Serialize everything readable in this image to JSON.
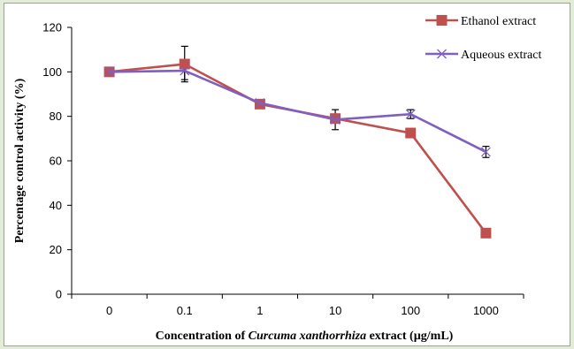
{
  "chart_data": {
    "type": "line",
    "categories": [
      "0",
      "0.1",
      "1",
      "10",
      "100",
      "1000"
    ],
    "series": [
      {
        "name": "Ethanol extract",
        "color": "#c0504d",
        "marker": "square",
        "values": [
          100,
          103.5,
          85.5,
          79,
          72.5,
          27.5
        ],
        "error": [
          0,
          8,
          0,
          0,
          0,
          0
        ]
      },
      {
        "name": "Aqueous extract",
        "color": "#7f5fbf",
        "marker": "x",
        "values": [
          100,
          100.5,
          86,
          78.5,
          81,
          64
        ],
        "error": [
          1,
          4,
          1,
          4.5,
          2,
          2.5
        ]
      }
    ],
    "yticks": [
      "0",
      "20",
      "40",
      "60",
      "80",
      "100",
      "120"
    ],
    "ylim": [
      0,
      120
    ],
    "ylabel": "Percentage control activity (%)",
    "xlabel_parts": [
      "Concentration of ",
      "Curcuma xanthorrhiza",
      " extract (µg/mL)"
    ],
    "legend_position": "top-right",
    "grid": false
  }
}
